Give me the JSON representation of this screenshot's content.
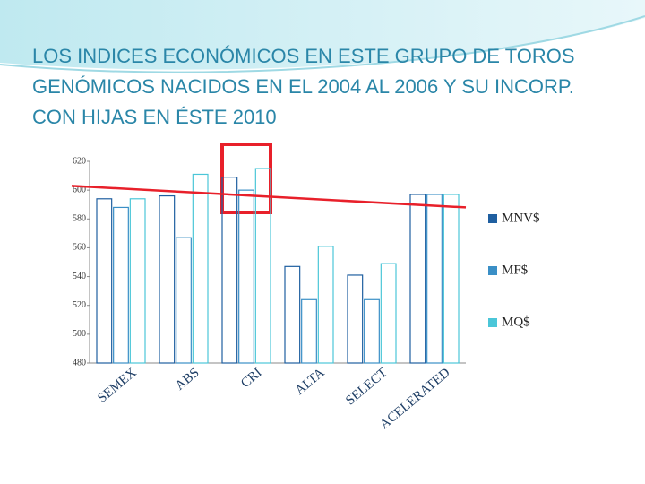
{
  "chart_data": {
    "type": "bar",
    "title": [
      "LOS INDICES ECONÓMICOS EN ESTE GRUPO DE TOROS",
      "GENÓMICOS NACIDOS EN EL 2004 AL 2006 Y SU INCORP.",
      "CON HIJAS EN ÉSTE 2010"
    ],
    "categories": [
      "SEMEX",
      "ABS",
      "CRI",
      "ALTA",
      "SELECT",
      "ACELERATED"
    ],
    "series": [
      {
        "name": "MNV$",
        "color": "#1f5fa0",
        "values": [
          594,
          596,
          609,
          547,
          541,
          597
        ]
      },
      {
        "name": "MF$",
        "color": "#3a8fc6",
        "values": [
          588,
          567,
          600,
          524,
          524,
          597
        ]
      },
      {
        "name": "MQ$",
        "color": "#4bc6d8",
        "values": [
          594,
          611,
          615,
          561,
          549,
          597
        ]
      }
    ],
    "trendline": {
      "start": 603,
      "end": 588,
      "color": "#e8202a"
    },
    "ylim": [
      480,
      620
    ],
    "yticks": [
      480,
      500,
      520,
      540,
      560,
      580,
      600,
      620
    ],
    "grid": false,
    "legend": "right"
  }
}
